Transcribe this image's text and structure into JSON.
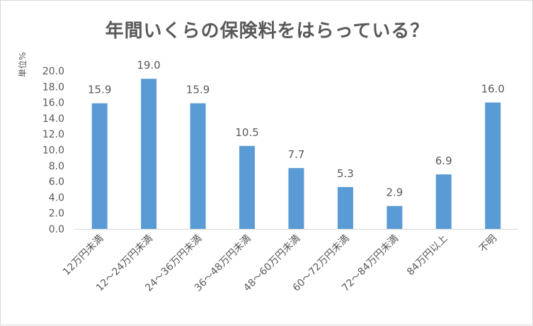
{
  "chart_data": {
    "type": "bar",
    "title": "年間いくらの保険料をはらっている？",
    "unit_label": "単位%",
    "categories": [
      "12万円未満",
      "12～24万円未満",
      "24～36万円未満",
      "36～48万円未満",
      "48～60万円未満",
      "60～72万円未満",
      "72～84万円未満",
      "84万円以上",
      "不明"
    ],
    "values": [
      15.9,
      19.0,
      15.9,
      10.5,
      7.7,
      5.3,
      2.9,
      6.9,
      16.0
    ],
    "value_labels": [
      "15.9",
      "19.0",
      "15.9",
      "10.5",
      "7.7",
      "5.3",
      "2.9",
      "6.9",
      "16.0"
    ],
    "ylim": [
      0,
      20
    ],
    "yticks": [
      "0.0",
      "2.0",
      "4.0",
      "6.0",
      "8.0",
      "10.0",
      "12.0",
      "14.0",
      "16.0",
      "18.0",
      "20.0"
    ],
    "grid": false,
    "bar_color": "#5b9bd5"
  }
}
